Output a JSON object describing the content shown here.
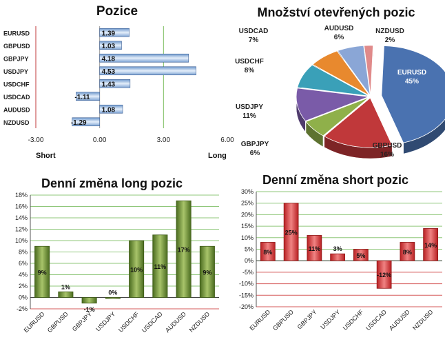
{
  "charts": {
    "positions": {
      "title": "Pozice",
      "x_ticks": [
        "-3.00",
        "0.00",
        "3.00",
        "6.00"
      ],
      "short_label": "Short",
      "long_label": "Long"
    },
    "pie": {
      "title": "Množství otevřených pozic"
    },
    "long_change": {
      "title": "Denní změna long pozic",
      "y_ticks": [
        "18%",
        "16%",
        "14%",
        "12%",
        "10%",
        "8%",
        "6%",
        "4%",
        "2%",
        "0%",
        "-2%"
      ]
    },
    "short_change": {
      "title": "Denní změna short pozic",
      "y_ticks": [
        "30%",
        "25%",
        "20%",
        "15%",
        "10%",
        "5%",
        "0%",
        "-5%",
        "-10%",
        "-15%",
        "-20%"
      ]
    }
  },
  "chart_data": [
    {
      "type": "bar",
      "orientation": "horizontal",
      "title": "Pozice",
      "xlabel": "",
      "categories": [
        "EURUSD",
        "GBPUSD",
        "GBPJPY",
        "USDJPY",
        "USDCHF",
        "USDCAD",
        "AUDUSD",
        "NZDUSD"
      ],
      "values": [
        1.39,
        1.03,
        4.18,
        4.53,
        1.43,
        -1.11,
        1.08,
        -1.29
      ],
      "data_labels": [
        "1.39",
        "1.03",
        "4.18",
        "4.53",
        "1.43",
        "-1.11",
        "1.08",
        "-1.29"
      ],
      "xlim": [
        -3,
        6
      ],
      "color": "#a9c6ea"
    },
    {
      "type": "pie",
      "title": "Množství otevřených pozic",
      "categories": [
        "EURUSD",
        "GBPUSD",
        "GBPJPY",
        "USDJPY",
        "USDCHF",
        "USDCAD",
        "AUDUSD",
        "NZDUSD"
      ],
      "values": [
        45,
        16,
        6,
        11,
        8,
        7,
        6,
        2
      ],
      "data_labels": [
        "45%",
        "16%",
        "6%",
        "11%",
        "8%",
        "7%",
        "6%",
        "2%"
      ],
      "colors": [
        "#4a72b0",
        "#c0383a",
        "#8fb04a",
        "#7a5ba8",
        "#3aa0b8",
        "#e8892e",
        "#8aa6d6",
        "#e08a8a"
      ]
    },
    {
      "type": "bar",
      "title": "Denní změna long pozic",
      "categories": [
        "EURUSD",
        "GBPUSD",
        "GBPJPY",
        "USDJPY",
        "USDCHF",
        "USDCAD",
        "AUDUSD",
        "NZDUSD"
      ],
      "values": [
        9,
        1,
        -1,
        0,
        10,
        11,
        17,
        9
      ],
      "data_labels": [
        "9%",
        "1%",
        "-1%",
        "0%",
        "10%",
        "11%",
        "17%",
        "9%"
      ],
      "ylim": [
        -2,
        18
      ],
      "color": "#5e7f2a"
    },
    {
      "type": "bar",
      "title": "Denní změna short pozic",
      "categories": [
        "EURUSD",
        "GBPUSD",
        "GBPJPY",
        "USDJPY",
        "USDCHF",
        "USDCAD",
        "AUDUSD",
        "NZDUSD"
      ],
      "values": [
        8,
        25,
        11,
        3,
        5,
        -12,
        8,
        14
      ],
      "data_labels": [
        "8%",
        "25%",
        "11%",
        "3%",
        "5%",
        "-12%",
        "8%",
        "14%"
      ],
      "ylim": [
        -20,
        30
      ],
      "color": "#d23a3a"
    }
  ]
}
